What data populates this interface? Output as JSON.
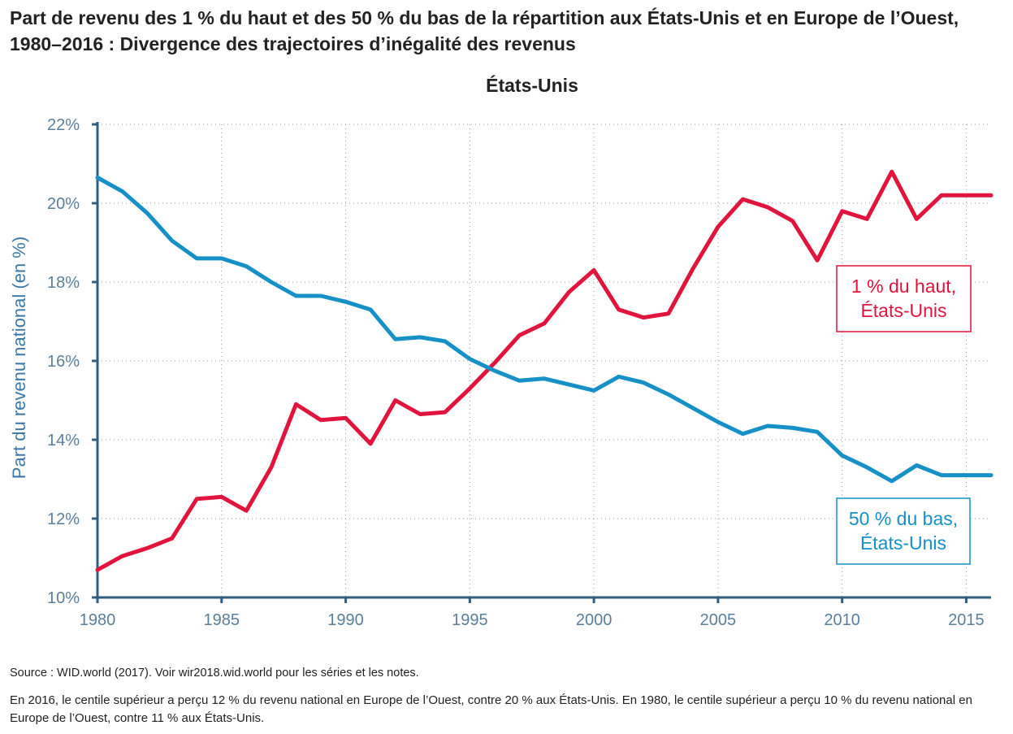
{
  "page": {
    "title": "Part de revenu des 1 % du haut et des 50 % du bas de la répartition aux États-Unis et en Europe de l’Ouest, 1980–2016 : Divergence des trajectoires d’inégalité des revenus",
    "source": "Source : WID.world (2017). Voir wir2018.wid.world pour les séries et les notes.",
    "note": "En 2016, le centile supérieur a perçu 12 % du revenu national en Europe de l’Ouest, contre 20 % aux États-Unis. En 1980, le centile supérieur a perçu 10 % du revenu national en Europe de l’Ouest, contre 11 % aux États-Unis."
  },
  "chart_data": {
    "type": "line",
    "title": "États-Unis",
    "xlabel": "",
    "ylabel": "Part du revenu national (en %)",
    "xlim": [
      1980,
      2016
    ],
    "ylim": [
      10,
      22
    ],
    "grid": true,
    "x_ticks": [
      1980,
      1985,
      1990,
      1995,
      2000,
      2005,
      2010,
      2015
    ],
    "y_ticks": [
      10,
      12,
      14,
      16,
      18,
      20,
      22
    ],
    "y_tick_labels": [
      "10%",
      "12%",
      "14%",
      "16%",
      "18%",
      "20%",
      "22%"
    ],
    "x": [
      1980,
      1981,
      1982,
      1983,
      1984,
      1985,
      1986,
      1987,
      1988,
      1989,
      1990,
      1991,
      1992,
      1993,
      1994,
      1995,
      1996,
      1997,
      1998,
      1999,
      2000,
      2001,
      2002,
      2003,
      2004,
      2005,
      2006,
      2007,
      2008,
      2009,
      2010,
      2011,
      2012,
      2013,
      2014,
      2015,
      2016
    ],
    "series": [
      {
        "name": "1 % du haut, États-Unis",
        "label_lines": [
          "1 % du haut,",
          "États-Unis"
        ],
        "color": "#e0143c",
        "values": [
          10.7,
          11.05,
          11.25,
          11.5,
          12.5,
          12.55,
          12.2,
          13.3,
          14.9,
          14.5,
          14.55,
          13.9,
          15.0,
          14.65,
          14.7,
          15.3,
          15.95,
          16.65,
          16.95,
          17.75,
          18.3,
          17.3,
          17.1,
          17.2,
          18.35,
          19.4,
          20.1,
          19.9,
          19.55,
          18.55,
          19.8,
          19.6,
          20.8,
          19.6,
          20.2,
          20.2,
          20.2
        ]
      },
      {
        "name": "50 % du bas, États-Unis",
        "label_lines": [
          "50 % du bas,",
          "États-Unis"
        ],
        "color": "#1790c8",
        "values": [
          20.65,
          20.3,
          19.75,
          19.05,
          18.6,
          18.6,
          18.4,
          18.0,
          17.65,
          17.65,
          17.5,
          17.3,
          16.55,
          16.6,
          16.5,
          16.05,
          15.75,
          15.5,
          15.55,
          15.4,
          15.25,
          15.6,
          15.45,
          15.15,
          14.8,
          14.45,
          14.15,
          14.35,
          14.3,
          14.2,
          13.6,
          13.3,
          12.95,
          13.35,
          13.1,
          13.1,
          13.1
        ]
      }
    ]
  }
}
